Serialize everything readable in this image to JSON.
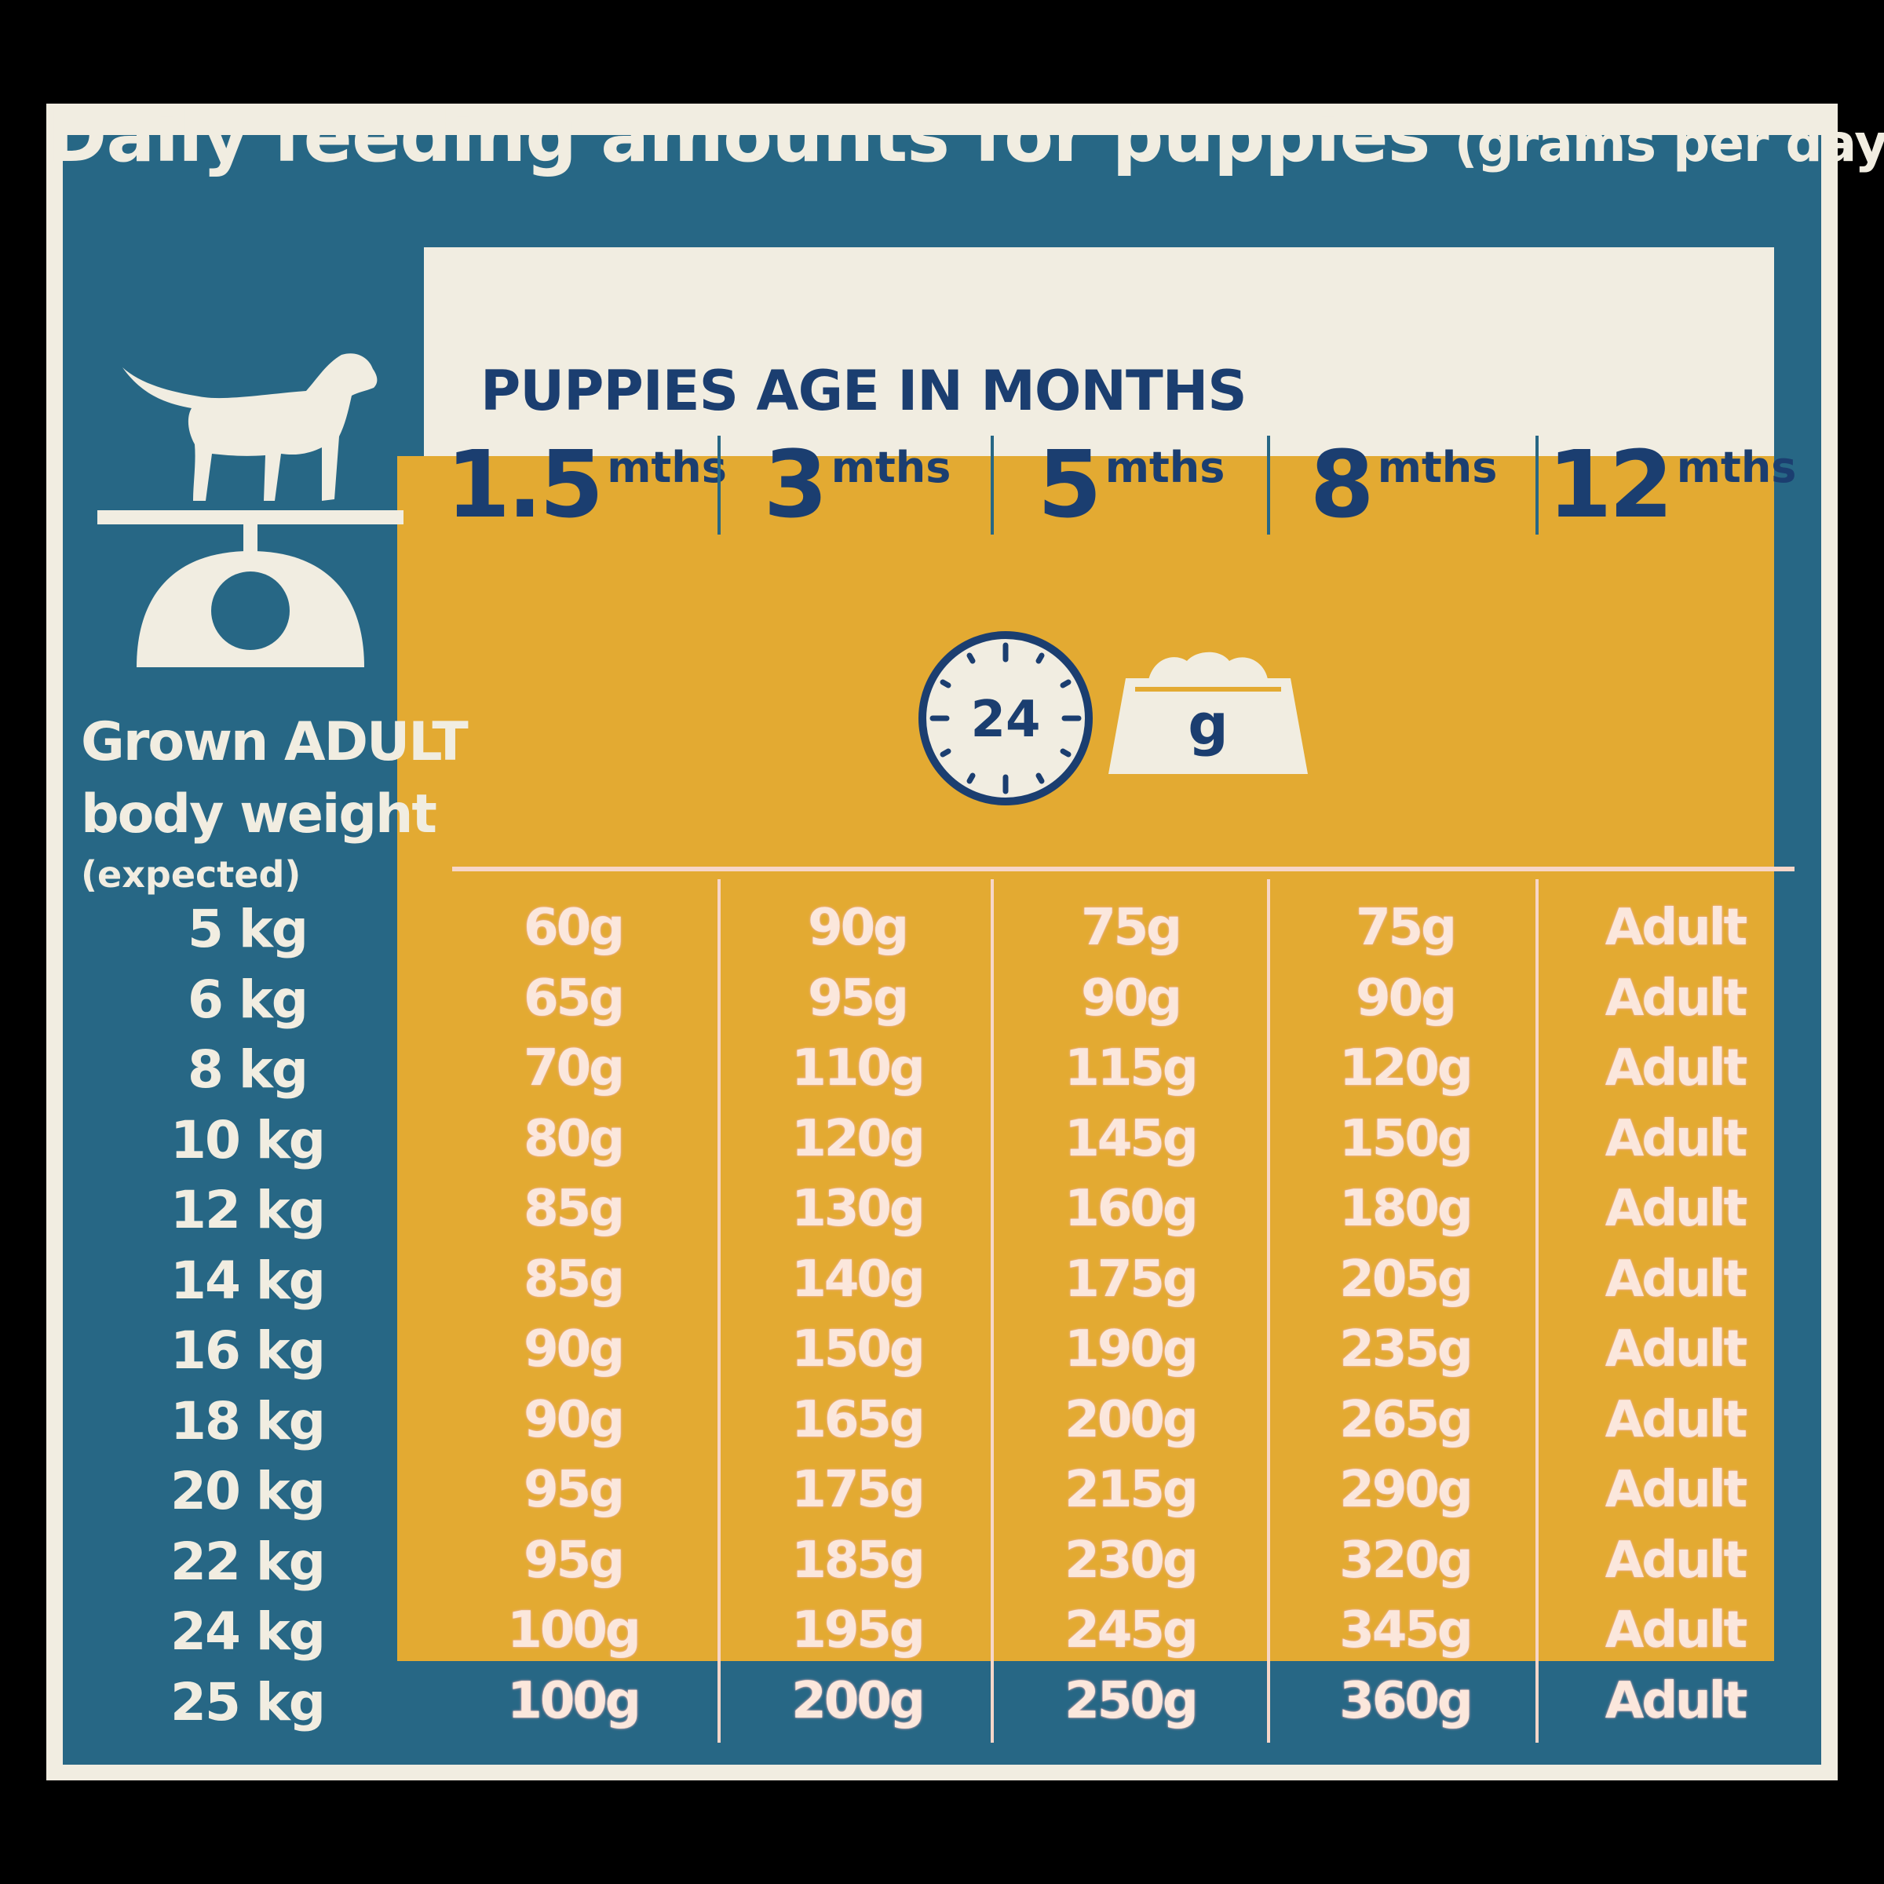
{
  "title": "Daily feeding amounts for puppies",
  "title_suffix": "(grams per day):",
  "age_heading": "PUPPIES AGE IN MONTHS",
  "weight_label": {
    "line1": "Grown ADULT",
    "line2": "body weight",
    "line3": "(expected)"
  },
  "icons": {
    "dog": "dog-on-scale-icon",
    "clock": "clock-24-icon",
    "bowl": "food-bowl-icon"
  },
  "clock_label": "24",
  "bowl_label": "g",
  "colors": {
    "blue": "#276785",
    "cream": "#f1ede1",
    "yellow": "#e3aa32",
    "navy": "#1b3e70",
    "cell_text": "#fbe7dc"
  },
  "chart_data": {
    "type": "table",
    "columns": [
      {
        "num": "1.5",
        "unit": "mths"
      },
      {
        "num": "3",
        "unit": "mths"
      },
      {
        "num": "5",
        "unit": "mths"
      },
      {
        "num": "8",
        "unit": "mths"
      },
      {
        "num": "12",
        "unit": "mths"
      }
    ],
    "rows": [
      {
        "weight": "5 kg",
        "values": [
          "60g",
          "90g",
          "75g",
          "75g",
          "Adult"
        ]
      },
      {
        "weight": "6 kg",
        "values": [
          "65g",
          "95g",
          "90g",
          "90g",
          "Adult"
        ]
      },
      {
        "weight": "8 kg",
        "values": [
          "70g",
          "110g",
          "115g",
          "120g",
          "Adult"
        ]
      },
      {
        "weight": "10 kg",
        "values": [
          "80g",
          "120g",
          "145g",
          "150g",
          "Adult"
        ]
      },
      {
        "weight": "12 kg",
        "values": [
          "85g",
          "130g",
          "160g",
          "180g",
          "Adult"
        ]
      },
      {
        "weight": "14 kg",
        "values": [
          "85g",
          "140g",
          "175g",
          "205g",
          "Adult"
        ]
      },
      {
        "weight": "16 kg",
        "values": [
          "90g",
          "150g",
          "190g",
          "235g",
          "Adult"
        ]
      },
      {
        "weight": "18 kg",
        "values": [
          "90g",
          "165g",
          "200g",
          "265g",
          "Adult"
        ]
      },
      {
        "weight": "20 kg",
        "values": [
          "95g",
          "175g",
          "215g",
          "290g",
          "Adult"
        ]
      },
      {
        "weight": "22 kg",
        "values": [
          "95g",
          "185g",
          "230g",
          "320g",
          "Adult"
        ]
      },
      {
        "weight": "24 kg",
        "values": [
          "100g",
          "195g",
          "245g",
          "345g",
          "Adult"
        ]
      },
      {
        "weight": "25 kg",
        "values": [
          "100g",
          "200g",
          "250g",
          "360g",
          "Adult"
        ]
      }
    ]
  }
}
